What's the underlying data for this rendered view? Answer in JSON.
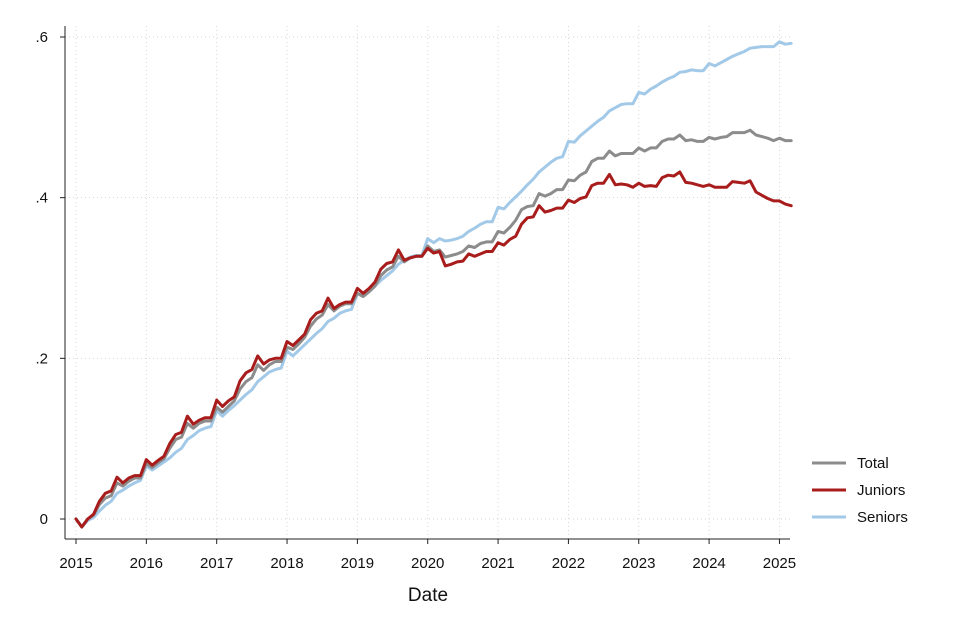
{
  "chart_data": {
    "type": "line",
    "title": "",
    "xlabel": "Date",
    "ylabel": "",
    "xlim": [
      2015.0,
      2025.25
    ],
    "ylim": [
      -0.02,
      0.61
    ],
    "x_ticks": [
      2015,
      2016,
      2017,
      2018,
      2019,
      2020,
      2021,
      2022,
      2023,
      2024,
      2025
    ],
    "x_tick_labels": [
      "2015",
      "2016",
      "2017",
      "2018",
      "2019",
      "2020",
      "2021",
      "2022",
      "2023",
      "2024",
      "2025"
    ],
    "y_ticks": [
      0,
      0.2,
      0.4,
      0.6
    ],
    "y_tick_labels": [
      "0",
      ".2",
      ".4",
      ".6"
    ],
    "grid": true,
    "legend_position": "bottom-right",
    "x": [
      2015.0,
      2015.083,
      2015.167,
      2015.25,
      2015.333,
      2015.417,
      2015.5,
      2015.583,
      2015.667,
      2015.75,
      2015.833,
      2015.917,
      2016.0,
      2016.083,
      2016.167,
      2016.25,
      2016.333,
      2016.417,
      2016.5,
      2016.583,
      2016.667,
      2016.75,
      2016.833,
      2016.917,
      2017.0,
      2017.083,
      2017.167,
      2017.25,
      2017.333,
      2017.417,
      2017.5,
      2017.583,
      2017.667,
      2017.75,
      2017.833,
      2017.917,
      2018.0,
      2018.083,
      2018.167,
      2018.25,
      2018.333,
      2018.417,
      2018.5,
      2018.583,
      2018.667,
      2018.75,
      2018.833,
      2018.917,
      2019.0,
      2019.083,
      2019.167,
      2019.25,
      2019.333,
      2019.417,
      2019.5,
      2019.583,
      2019.667,
      2019.75,
      2019.833,
      2019.917,
      2020.0,
      2020.083,
      2020.167,
      2020.25,
      2020.333,
      2020.417,
      2020.5,
      2020.583,
      2020.667,
      2020.75,
      2020.833,
      2020.917,
      2021.0,
      2021.083,
      2021.167,
      2021.25,
      2021.333,
      2021.417,
      2021.5,
      2021.583,
      2021.667,
      2021.75,
      2021.833,
      2021.917,
      2022.0,
      2022.083,
      2022.167,
      2022.25,
      2022.333,
      2022.417,
      2022.5,
      2022.583,
      2022.667,
      2022.75,
      2022.833,
      2022.917,
      2023.0,
      2023.083,
      2023.167,
      2023.25,
      2023.333,
      2023.417,
      2023.5,
      2023.583,
      2023.667,
      2023.75,
      2023.833,
      2023.917,
      2024.0,
      2024.083,
      2024.167,
      2024.25,
      2024.333,
      2024.417,
      2024.5,
      2024.583,
      2024.667,
      2024.75,
      2024.833,
      2024.917,
      2025.0,
      2025.083,
      2025.167
    ],
    "series": [
      {
        "name": "Total",
        "color": "#8c8c8c",
        "values": [
          0.0,
          -0.01,
          0.0,
          0.005,
          0.018,
          0.026,
          0.029,
          0.045,
          0.041,
          0.047,
          0.051,
          0.051,
          0.069,
          0.064,
          0.07,
          0.075,
          0.088,
          0.099,
          0.102,
          0.119,
          0.113,
          0.119,
          0.122,
          0.122,
          0.139,
          0.133,
          0.14,
          0.147,
          0.162,
          0.171,
          0.176,
          0.192,
          0.185,
          0.192,
          0.196,
          0.196,
          0.214,
          0.211,
          0.218,
          0.226,
          0.24,
          0.249,
          0.254,
          0.267,
          0.259,
          0.265,
          0.268,
          0.268,
          0.281,
          0.277,
          0.283,
          0.29,
          0.303,
          0.31,
          0.314,
          0.327,
          0.32,
          0.325,
          0.327,
          0.327,
          0.34,
          0.333,
          0.335,
          0.326,
          0.328,
          0.33,
          0.333,
          0.34,
          0.338,
          0.343,
          0.345,
          0.345,
          0.358,
          0.356,
          0.363,
          0.372,
          0.385,
          0.389,
          0.39,
          0.405,
          0.402,
          0.405,
          0.41,
          0.41,
          0.422,
          0.421,
          0.428,
          0.432,
          0.445,
          0.449,
          0.449,
          0.458,
          0.452,
          0.455,
          0.455,
          0.455,
          0.462,
          0.458,
          0.462,
          0.462,
          0.47,
          0.473,
          0.473,
          0.478,
          0.471,
          0.472,
          0.47,
          0.47,
          0.475,
          0.473,
          0.475,
          0.476,
          0.481,
          0.481,
          0.481,
          0.484,
          0.478,
          0.476,
          0.474,
          0.471,
          0.474,
          0.471,
          0.471
        ]
      },
      {
        "name": "Juniors",
        "color": "#a81c1c",
        "values": [
          0.0,
          -0.01,
          0.0,
          0.006,
          0.022,
          0.032,
          0.035,
          0.052,
          0.045,
          0.051,
          0.054,
          0.054,
          0.074,
          0.067,
          0.073,
          0.078,
          0.094,
          0.105,
          0.108,
          0.128,
          0.118,
          0.123,
          0.126,
          0.126,
          0.148,
          0.14,
          0.147,
          0.152,
          0.172,
          0.182,
          0.186,
          0.203,
          0.193,
          0.198,
          0.2,
          0.2,
          0.221,
          0.216,
          0.223,
          0.23,
          0.248,
          0.256,
          0.259,
          0.275,
          0.262,
          0.267,
          0.27,
          0.27,
          0.287,
          0.281,
          0.287,
          0.295,
          0.311,
          0.318,
          0.32,
          0.335,
          0.322,
          0.325,
          0.327,
          0.327,
          0.337,
          0.331,
          0.333,
          0.315,
          0.317,
          0.32,
          0.321,
          0.33,
          0.327,
          0.33,
          0.333,
          0.333,
          0.344,
          0.341,
          0.348,
          0.352,
          0.367,
          0.375,
          0.376,
          0.39,
          0.382,
          0.384,
          0.387,
          0.387,
          0.397,
          0.394,
          0.399,
          0.401,
          0.415,
          0.418,
          0.418,
          0.429,
          0.416,
          0.417,
          0.416,
          0.413,
          0.418,
          0.414,
          0.415,
          0.414,
          0.425,
          0.428,
          0.427,
          0.432,
          0.419,
          0.418,
          0.416,
          0.414,
          0.416,
          0.413,
          0.413,
          0.413,
          0.42,
          0.419,
          0.418,
          0.421,
          0.407,
          0.403,
          0.399,
          0.396,
          0.396,
          0.392,
          0.39
        ]
      },
      {
        "name": "Seniors",
        "color": "#a2c9e8",
        "values": [
          0.0,
          -0.01,
          -0.002,
          0.002,
          0.01,
          0.017,
          0.022,
          0.032,
          0.036,
          0.041,
          0.045,
          0.048,
          0.066,
          0.061,
          0.066,
          0.071,
          0.076,
          0.083,
          0.088,
          0.099,
          0.104,
          0.11,
          0.113,
          0.115,
          0.135,
          0.128,
          0.135,
          0.141,
          0.148,
          0.155,
          0.161,
          0.171,
          0.177,
          0.183,
          0.186,
          0.188,
          0.209,
          0.203,
          0.21,
          0.217,
          0.224,
          0.231,
          0.237,
          0.246,
          0.25,
          0.256,
          0.259,
          0.261,
          0.281,
          0.277,
          0.283,
          0.29,
          0.297,
          0.303,
          0.309,
          0.317,
          0.322,
          0.326,
          0.328,
          0.328,
          0.349,
          0.344,
          0.349,
          0.346,
          0.347,
          0.349,
          0.352,
          0.358,
          0.362,
          0.367,
          0.37,
          0.37,
          0.388,
          0.386,
          0.394,
          0.401,
          0.408,
          0.416,
          0.423,
          0.432,
          0.438,
          0.444,
          0.449,
          0.451,
          0.47,
          0.469,
          0.477,
          0.483,
          0.489,
          0.495,
          0.5,
          0.508,
          0.512,
          0.516,
          0.517,
          0.517,
          0.531,
          0.529,
          0.535,
          0.539,
          0.544,
          0.548,
          0.551,
          0.556,
          0.557,
          0.559,
          0.558,
          0.558,
          0.567,
          0.564,
          0.568,
          0.572,
          0.576,
          0.579,
          0.582,
          0.586,
          0.587,
          0.588,
          0.588,
          0.588,
          0.594,
          0.591,
          0.592
        ]
      }
    ]
  }
}
